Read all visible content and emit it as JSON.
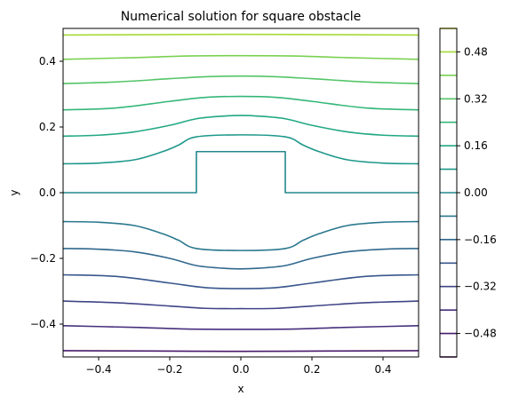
{
  "chart_data": {
    "type": "contour",
    "title": "Numerical solution for square obstacle",
    "xlabel": "x",
    "ylabel": "y",
    "xlim": [
      -0.5,
      0.5
    ],
    "ylim": [
      -0.5,
      0.5
    ],
    "x_ticks": [
      -0.4,
      -0.2,
      0.0,
      0.2,
      0.4
    ],
    "x_tick_labels": [
      "−0.4",
      "−0.2",
      "0.0",
      "0.2",
      "0.4"
    ],
    "y_ticks": [
      -0.4,
      -0.2,
      0.0,
      0.2,
      0.4
    ],
    "y_tick_labels": [
      "−0.4",
      "−0.2",
      "0.0",
      "0.2",
      "0.4"
    ],
    "obstacle": {
      "shape": "square",
      "x_range": [
        -0.125,
        0.125
      ],
      "y_range": [
        0.0,
        0.125
      ]
    },
    "colorbar": {
      "colormap": "viridis",
      "range": [
        -0.56,
        0.56
      ],
      "levels": [
        -0.56,
        -0.48,
        -0.4,
        -0.32,
        -0.24,
        -0.16,
        -0.08,
        0.0,
        0.08,
        0.16,
        0.24,
        0.32,
        0.4,
        0.48,
        0.56
      ],
      "level_colors": [
        "#440154",
        "#481a6c",
        "#472f7d",
        "#414487",
        "#39568c",
        "#31688e",
        "#2a788e",
        "#23888e",
        "#1f988b",
        "#22a884",
        "#35b779",
        "#54c568",
        "#7ad151",
        "#a5db36",
        "#d2e21b"
      ],
      "tick_values": [
        -0.48,
        -0.32,
        -0.16,
        0.0,
        0.16,
        0.32,
        0.48
      ],
      "tick_labels": [
        "−0.48",
        "−0.32",
        "−0.16",
        "0.00",
        "0.16",
        "0.32",
        "0.48"
      ]
    },
    "series": [
      {
        "level": -0.48,
        "color": "#481a6c",
        "x": [
          -0.5,
          -0.25,
          0,
          0.25,
          0.5
        ],
        "y": [
          -0.481,
          -0.482,
          -0.483,
          -0.482,
          -0.481
        ]
      },
      {
        "level": -0.4,
        "color": "#472f7d",
        "x": [
          -0.5,
          -0.3,
          -0.15,
          0,
          0.15,
          0.3,
          0.5
        ],
        "y": [
          -0.405,
          -0.41,
          -0.415,
          -0.416,
          -0.415,
          -0.41,
          -0.405
        ]
      },
      {
        "level": -0.32,
        "color": "#414487",
        "x": [
          -0.5,
          -0.35,
          -0.2,
          -0.1,
          0,
          0.1,
          0.2,
          0.35,
          0.5
        ],
        "y": [
          -0.33,
          -0.335,
          -0.345,
          -0.352,
          -0.353,
          -0.352,
          -0.345,
          -0.335,
          -0.33
        ]
      },
      {
        "level": -0.24,
        "color": "#39568c",
        "x": [
          -0.5,
          -0.35,
          -0.2,
          -0.1,
          0,
          0.1,
          0.2,
          0.35,
          0.5
        ],
        "y": [
          -0.25,
          -0.255,
          -0.275,
          -0.289,
          -0.292,
          -0.289,
          -0.275,
          -0.255,
          -0.25
        ]
      },
      {
        "level": -0.16,
        "color": "#31688e",
        "x": [
          -0.5,
          -0.4,
          -0.3,
          -0.2,
          -0.125,
          -0.05,
          0,
          0.05,
          0.125,
          0.2,
          0.3,
          0.4,
          0.5
        ],
        "y": [
          -0.17,
          -0.172,
          -0.18,
          -0.2,
          -0.222,
          -0.23,
          -0.232,
          -0.23,
          -0.222,
          -0.2,
          -0.18,
          -0.172,
          -0.17
        ]
      },
      {
        "level": -0.08,
        "color": "#2a788e",
        "x": [
          -0.5,
          -0.4,
          -0.3,
          -0.22,
          -0.175,
          -0.125,
          0,
          0.125,
          0.175,
          0.22,
          0.3,
          0.4,
          0.5
        ],
        "y": [
          -0.088,
          -0.09,
          -0.1,
          -0.125,
          -0.145,
          -0.17,
          -0.176,
          -0.17,
          -0.145,
          -0.125,
          -0.1,
          -0.09,
          -0.088
        ]
      },
      {
        "level": 0.0,
        "color": "#23888e",
        "x": [
          -0.5,
          -0.125,
          -0.125,
          0.125,
          0.125,
          0.5
        ],
        "y": [
          0.0,
          0.0,
          0.125,
          0.125,
          0.0,
          0.0
        ]
      },
      {
        "level": 0.08,
        "color": "#1f988b",
        "x": [
          -0.5,
          -0.4,
          -0.3,
          -0.22,
          -0.175,
          -0.125,
          0,
          0.125,
          0.175,
          0.22,
          0.3,
          0.4,
          0.5
        ],
        "y": [
          0.088,
          0.09,
          0.1,
          0.125,
          0.145,
          0.17,
          0.176,
          0.17,
          0.145,
          0.125,
          0.1,
          0.09,
          0.088
        ]
      },
      {
        "level": 0.16,
        "color": "#22a884",
        "x": [
          -0.5,
          -0.4,
          -0.3,
          -0.2,
          -0.125,
          -0.05,
          0,
          0.05,
          0.125,
          0.2,
          0.3,
          0.4,
          0.5
        ],
        "y": [
          0.172,
          0.175,
          0.185,
          0.205,
          0.225,
          0.233,
          0.235,
          0.233,
          0.225,
          0.205,
          0.185,
          0.175,
          0.172
        ]
      },
      {
        "level": 0.24,
        "color": "#35b779",
        "x": [
          -0.5,
          -0.35,
          -0.2,
          -0.1,
          0,
          0.1,
          0.2,
          0.35,
          0.5
        ],
        "y": [
          0.252,
          0.258,
          0.278,
          0.29,
          0.293,
          0.29,
          0.278,
          0.258,
          0.252
        ]
      },
      {
        "level": 0.32,
        "color": "#54c568",
        "x": [
          -0.5,
          -0.35,
          -0.2,
          -0.1,
          0,
          0.1,
          0.2,
          0.35,
          0.5
        ],
        "y": [
          0.332,
          0.337,
          0.347,
          0.353,
          0.355,
          0.353,
          0.347,
          0.337,
          0.332
        ]
      },
      {
        "level": 0.4,
        "color": "#7ad151",
        "x": [
          -0.5,
          -0.3,
          -0.15,
          0,
          0.15,
          0.3,
          0.5
        ],
        "y": [
          0.406,
          0.411,
          0.416,
          0.417,
          0.416,
          0.411,
          0.406
        ]
      },
      {
        "level": 0.48,
        "color": "#a5db36",
        "x": [
          -0.5,
          -0.25,
          0,
          0.25,
          0.5
        ],
        "y": [
          0.48,
          0.481,
          0.482,
          0.481,
          0.48
        ]
      }
    ]
  }
}
